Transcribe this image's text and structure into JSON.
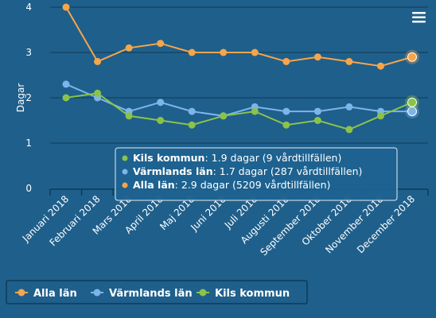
{
  "chart_data": {
    "type": "line",
    "ylabel": "Dagar",
    "ylim": [
      0,
      4
    ],
    "yticks": [
      0,
      1,
      2,
      3,
      4
    ],
    "categories": [
      "Januari 2018",
      "Februari 2018",
      "Mars 2018",
      "April 2018",
      "Maj 2018",
      "Juni 2018",
      "Juli 2018",
      "Augusti 2018",
      "September 2018",
      "Oktober 2018",
      "November 2018",
      "December 2018"
    ],
    "series": [
      {
        "name": "Alla län",
        "color": "#f5a54a",
        "values": [
          4.0,
          2.8,
          3.1,
          3.2,
          3.0,
          3.0,
          3.0,
          2.8,
          2.9,
          2.8,
          2.7,
          2.9
        ]
      },
      {
        "name": "Värmlands län",
        "color": "#7cb5ec",
        "values": [
          2.3,
          2.0,
          1.7,
          1.9,
          1.7,
          1.6,
          1.8,
          1.7,
          1.7,
          1.8,
          1.7,
          1.7
        ]
      },
      {
        "name": "Kils kommun",
        "color": "#8bc34a",
        "values": [
          2.0,
          2.1,
          1.6,
          1.5,
          1.4,
          1.6,
          1.7,
          1.4,
          1.5,
          1.3,
          1.6,
          1.9
        ]
      }
    ],
    "legend": {
      "position": "bottom-left",
      "order": [
        "Alla län",
        "Värmlands län",
        "Kils kommun"
      ]
    },
    "tooltip": {
      "lines": [
        {
          "series": "Kils kommun",
          "text": ": 1.9 dagar (9 vårdtillfällen)"
        },
        {
          "series": "Värmlands län",
          "text": ": 1.7 dagar (287 vårdtillfällen)"
        },
        {
          "series": "Alla län",
          "text": ": 2.9 dagar (5209 vårdtillfällen)"
        }
      ]
    },
    "highlighted_category": "December 2018",
    "grid": true
  },
  "menu_icon": "hamburger-menu-icon",
  "colors": {
    "background": "#1f5f8b",
    "gridline": "#0f3b57",
    "tooltip_bg": "#1e6290",
    "tooltip_border": "#e6eef5"
  }
}
